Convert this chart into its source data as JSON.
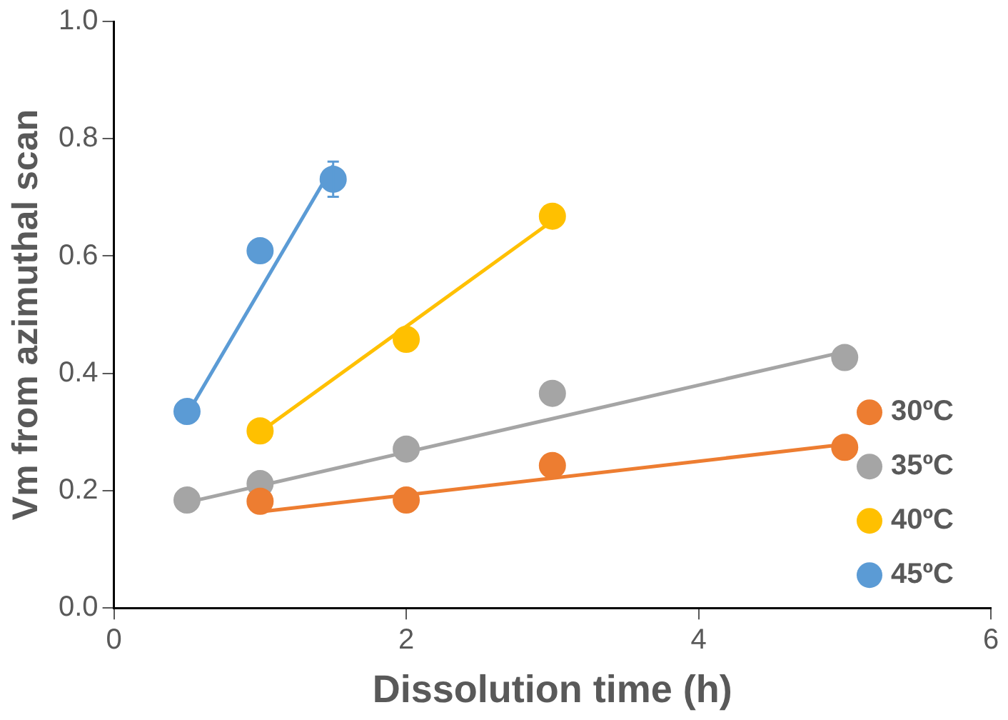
{
  "chart_data": {
    "type": "scatter",
    "xlabel": "Dissolution time (h)",
    "ylabel": "Vm from azimuthal scan",
    "xlim": [
      0,
      6
    ],
    "xticks": [
      0,
      2,
      4,
      6
    ],
    "ylim": [
      0,
      1
    ],
    "yticks": [
      {
        "value": 0,
        "label": "0.0"
      },
      {
        "value": 0.2,
        "label": "0.2"
      },
      {
        "value": 0.4,
        "label": "0.4"
      },
      {
        "value": 0.6,
        "label": "0.6"
      },
      {
        "value": 0.8,
        "label": "0.8"
      },
      {
        "value": 1,
        "label": "1.0"
      }
    ],
    "legend": "bottom right",
    "marker": "circle",
    "grid": false,
    "series": [
      {
        "name": "30ºC",
        "color": "#ed7d31",
        "x": [
          1,
          2,
          3,
          5
        ],
        "values": [
          0.182,
          0.184,
          0.243,
          0.274
        ]
      },
      {
        "name": "35ºC",
        "color": "#a5a5a5",
        "x": [
          0.5,
          1,
          2,
          3,
          5
        ],
        "values": [
          0.184,
          0.212,
          0.271,
          0.366,
          0.427
        ]
      },
      {
        "name": "40ºC",
        "color": "#ffc000",
        "x": [
          1,
          2,
          3
        ],
        "values": [
          0.302,
          0.458,
          0.668
        ]
      },
      {
        "name": "45ºC",
        "color": "#5b9bd5",
        "x": [
          0.5,
          1,
          1.5
        ],
        "values": [
          0.335,
          0.609,
          0.731
        ],
        "errors": [
          null,
          null,
          0.03
        ]
      },
      {
        "type": "line",
        "marker": "none",
        "color": "#ed7d31",
        "x": [
          1,
          5
        ],
        "values": [
          0.164,
          0.279
        ]
      },
      {
        "type": "line",
        "marker": "none",
        "color": "#a5a5a5",
        "x": [
          0.5,
          5
        ],
        "values": [
          0.18,
          0.437
        ]
      },
      {
        "type": "line",
        "marker": "none",
        "color": "#ffc000",
        "x": [
          1,
          3
        ],
        "values": [
          0.3,
          0.66
        ]
      },
      {
        "type": "line",
        "marker": "none",
        "color": "#5b9bd5",
        "x": [
          0.5,
          1.5
        ],
        "values": [
          0.33,
          0.754
        ]
      }
    ]
  }
}
